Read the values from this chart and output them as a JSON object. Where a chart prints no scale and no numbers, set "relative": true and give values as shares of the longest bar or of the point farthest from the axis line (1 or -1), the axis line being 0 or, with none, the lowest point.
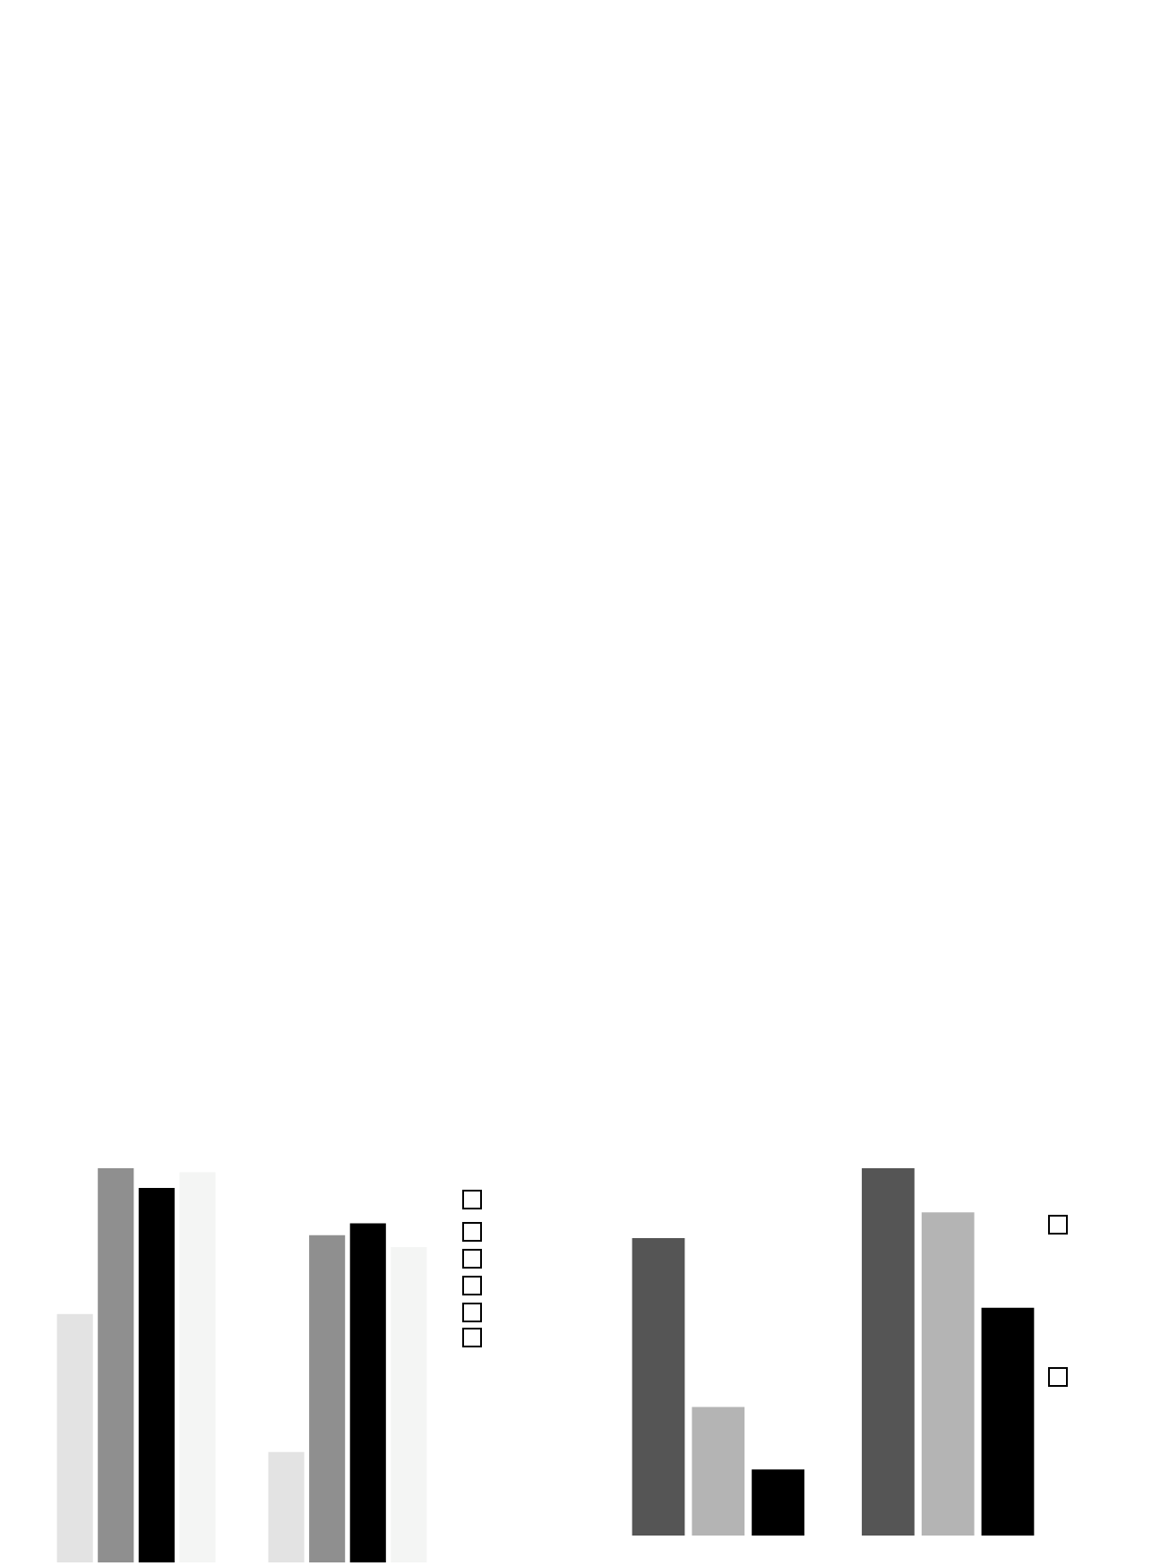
{
  "chart_data": [
    {
      "type": "bar",
      "relative": true,
      "categories": [
        null,
        null
      ],
      "legend": false,
      "series": [
        {
          "color": "#e3e3e3",
          "values": [
            0.63,
            0.28
          ]
        },
        {
          "color": "#8f8f8f",
          "values": [
            1,
            0.83
          ]
        },
        {
          "color": "#000000",
          "values": [
            0.95,
            0.86
          ]
        },
        {
          "color": "#f4f5f4",
          "values": [
            0.99,
            0.8
          ]
        }
      ]
    },
    {
      "type": "bar",
      "relative": true,
      "categories": [
        null,
        null
      ],
      "legend": false,
      "series": [
        {
          "color": "#555555",
          "values": [
            0.81,
            1
          ]
        },
        {
          "color": "#b4b4b4",
          "values": [
            0.35,
            0.88
          ]
        },
        {
          "color": "#000000",
          "values": [
            0.18,
            0.62
          ]
        }
      ]
    }
  ]
}
